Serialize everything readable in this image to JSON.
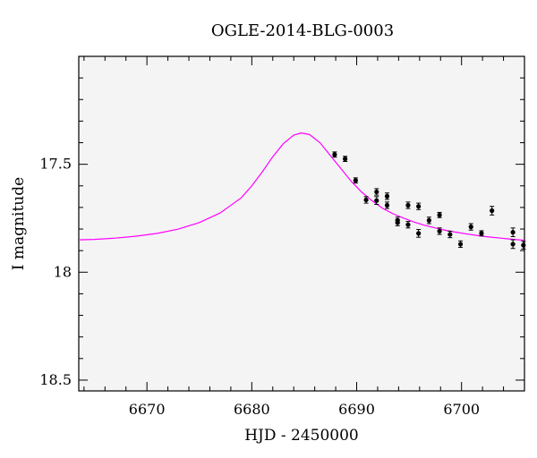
{
  "chart_data": {
    "type": "scatter",
    "title": "OGLE-2014-BLG-0003",
    "xlabel": "HJD - 2450000",
    "ylabel": "I magnitude",
    "xlim": [
      6663.5,
      6706
    ],
    "ylim": [
      18.55,
      17.0
    ],
    "y_inverted": true,
    "grid": false,
    "x_major_ticks": [
      6670,
      6680,
      6690,
      6700
    ],
    "x_minor_step": 2,
    "y_major_ticks": [
      17.5,
      18,
      18.5
    ],
    "y_tick_labels": [
      "17.5",
      "18",
      "18.5"
    ],
    "y_minor_step": 0.1,
    "colors": {
      "model": "#ff00ff",
      "points": "#000000",
      "background": "#f4f4f4"
    },
    "series": [
      {
        "type": "scatter",
        "points": [
          {
            "x": 6687.9,
            "y": 17.455,
            "err": 0.012
          },
          {
            "x": 6688.9,
            "y": 17.475,
            "err": 0.012
          },
          {
            "x": 6689.9,
            "y": 17.575,
            "err": 0.012
          },
          {
            "x": 6690.9,
            "y": 17.665,
            "err": 0.015
          },
          {
            "x": 6691.9,
            "y": 17.628,
            "err": 0.015
          },
          {
            "x": 6691.9,
            "y": 17.668,
            "err": 0.018
          },
          {
            "x": 6692.9,
            "y": 17.648,
            "err": 0.015
          },
          {
            "x": 6692.9,
            "y": 17.69,
            "err": 0.015
          },
          {
            "x": 6693.9,
            "y": 17.76,
            "err": 0.015
          },
          {
            "x": 6693.9,
            "y": 17.77,
            "err": 0.015
          },
          {
            "x": 6694.9,
            "y": 17.69,
            "err": 0.015
          },
          {
            "x": 6694.9,
            "y": 17.78,
            "err": 0.015
          },
          {
            "x": 6695.9,
            "y": 17.695,
            "err": 0.015
          },
          {
            "x": 6695.9,
            "y": 17.82,
            "err": 0.018
          },
          {
            "x": 6696.9,
            "y": 17.76,
            "err": 0.015
          },
          {
            "x": 6697.9,
            "y": 17.735,
            "err": 0.012
          },
          {
            "x": 6697.9,
            "y": 17.81,
            "err": 0.015
          },
          {
            "x": 6698.9,
            "y": 17.825,
            "err": 0.015
          },
          {
            "x": 6699.9,
            "y": 17.87,
            "err": 0.015
          },
          {
            "x": 6700.9,
            "y": 17.79,
            "err": 0.015
          },
          {
            "x": 6701.9,
            "y": 17.82,
            "err": 0.012
          },
          {
            "x": 6702.9,
            "y": 17.715,
            "err": 0.02
          },
          {
            "x": 6704.9,
            "y": 17.815,
            "err": 0.02
          },
          {
            "x": 6704.9,
            "y": 17.87,
            "err": 0.02
          },
          {
            "x": 6705.9,
            "y": 17.875,
            "err": 0.018
          }
        ]
      },
      {
        "type": "line",
        "x": [
          6663.5,
          6665,
          6667,
          6669,
          6671,
          6673,
          6675,
          6677,
          6679,
          6680,
          6681,
          6682,
          6683,
          6684,
          6684.7,
          6685.5,
          6686.5,
          6687.5,
          6688.5,
          6689.5,
          6690.5,
          6691.5,
          6692.5,
          6693.5,
          6694.5,
          6695.5,
          6696.5,
          6697.5,
          6698.5,
          6699.5,
          6700.5,
          6701.5,
          6702.5,
          6703.5,
          6704.5,
          6705.5,
          6706
        ],
        "y": [
          17.85,
          17.848,
          17.842,
          17.833,
          17.82,
          17.8,
          17.77,
          17.725,
          17.655,
          17.6,
          17.535,
          17.465,
          17.405,
          17.365,
          17.355,
          17.362,
          17.4,
          17.46,
          17.52,
          17.58,
          17.63,
          17.67,
          17.705,
          17.73,
          17.75,
          17.768,
          17.783,
          17.795,
          17.806,
          17.815,
          17.823,
          17.83,
          17.836,
          17.841,
          17.846,
          17.85,
          17.852
        ]
      }
    ]
  }
}
